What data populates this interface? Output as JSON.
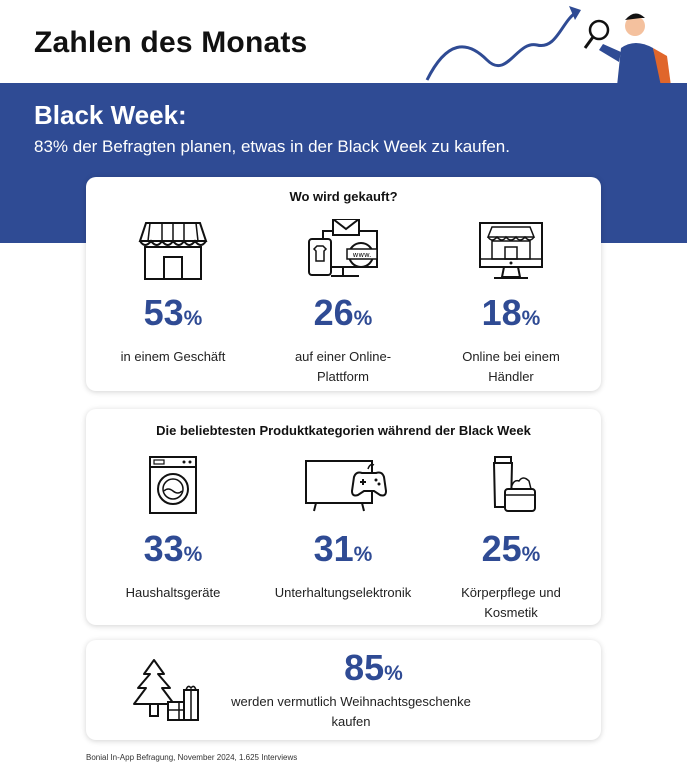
{
  "header": {
    "title": "Zahlen des Monats"
  },
  "banner": {
    "title": "Black Week:",
    "subtitle": "83% der Befragten planen, etwas in der Black Week zu kaufen."
  },
  "colors": {
    "brand_blue": "#2f4b94",
    "text": "#1a1a1a"
  },
  "where_card": {
    "heading": "Wo wird gekauft?",
    "stats": [
      {
        "icon": "storefront-icon",
        "value": "53",
        "unit": "%",
        "label_line1": "in einem Geschäft",
        "label_line2": ""
      },
      {
        "icon": "online-platform-icon",
        "value": "26",
        "unit": "%",
        "label_line1": "auf einer Online-",
        "label_line2": "Plattform"
      },
      {
        "icon": "online-shop-monitor-icon",
        "value": "18",
        "unit": "%",
        "label_line1": "Online bei einem",
        "label_line2": "Händler"
      }
    ]
  },
  "category_card": {
    "heading": "Die beliebtesten Produktkategorien während der Black Week",
    "stats": [
      {
        "icon": "washing-machine-icon",
        "value": "33",
        "unit": "%",
        "label_line1": "Haushaltsgeräte",
        "label_line2": ""
      },
      {
        "icon": "tv-gamepad-icon",
        "value": "31",
        "unit": "%",
        "label_line1": "Unterhaltungselektronik",
        "label_line2": ""
      },
      {
        "icon": "cosmetics-icon",
        "value": "25",
        "unit": "%",
        "label_line1": "Körperpflege und",
        "label_line2": "Kosmetik"
      }
    ]
  },
  "gift_card": {
    "icon": "christmas-tree-gifts-icon",
    "value": "85",
    "unit": "%",
    "label_line1": "werden vermutlich Weihnachtsgeschenke",
    "label_line2": "kaufen"
  },
  "footnote": "Bonial In-App Befragung, November 2024, 1.625 Interviews"
}
